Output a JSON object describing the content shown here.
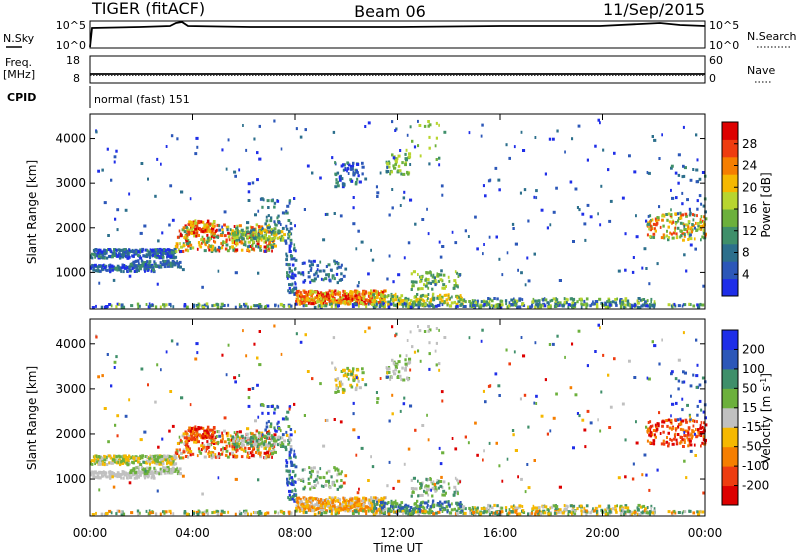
{
  "header": {
    "station": "TIGER (fitACF)",
    "beam": "Beam 06",
    "date": "11/Sep/2015"
  },
  "colors": {
    "power_scale": [
      "#1f2ee8",
      "#2c57b8",
      "#2c6f8c",
      "#3f8f6a",
      "#6cb03c",
      "#b8d52f",
      "#f5b800",
      "#f57e00",
      "#ee3c10",
      "#dd0000"
    ],
    "velocity_scale": [
      "#dd0000",
      "#ee3c10",
      "#f57e00",
      "#f5b800",
      "#c0c0c0",
      "#6cb03c",
      "#3f8f6a",
      "#2c57b8",
      "#1f2ee8"
    ]
  },
  "chart_data": [
    {
      "type": "line",
      "panel": "nsky",
      "left_label": "N.Sky",
      "right_label": "N.Search",
      "left_ticks": [
        "10^5",
        "10^0"
      ],
      "right_ticks": [
        "10^5",
        "10^0"
      ]
    },
    {
      "type": "line",
      "panel": "freq",
      "left_label": "Freq.",
      "left_unit": "[MHz]",
      "right_label": "Nave",
      "left_ticks": [
        "18",
        "8"
      ],
      "right_ticks": [
        "60",
        "0"
      ]
    },
    {
      "type": "table",
      "panel": "cpid",
      "label": "CPID",
      "text": "normal (fast) 151"
    },
    {
      "type": "heatmap",
      "panel": "power",
      "ylabel": "Slant Range [km]",
      "ylim": [
        180,
        4550
      ],
      "y_ticks": [
        "1000",
        "2000",
        "3000",
        "4000"
      ],
      "colorbar_label": "Power [dB]",
      "colorbar_range": [
        0,
        32
      ],
      "colorbar_ticks": [
        "4",
        "8",
        "12",
        "16",
        "20",
        "24",
        "28"
      ]
    },
    {
      "type": "heatmap",
      "panel": "velocity",
      "ylabel": "Slant Range [km]",
      "xlabel": "Time UT",
      "ylim": [
        180,
        4550
      ],
      "xlim": [
        0,
        24
      ],
      "y_ticks": [
        "1000",
        "2000",
        "3000",
        "4000"
      ],
      "x_ticks": [
        "00:00",
        "04:00",
        "08:00",
        "12:00",
        "16:00",
        "20:00",
        "00:00"
      ],
      "colorbar_label": "Velocity [m s",
      "colorbar_label_sup": "-1",
      "colorbar_label_end": "]",
      "colorbar_ticks": [
        "200",
        "100",
        "50",
        "15",
        "-15",
        "-50",
        "-100",
        "-200"
      ]
    }
  ]
}
